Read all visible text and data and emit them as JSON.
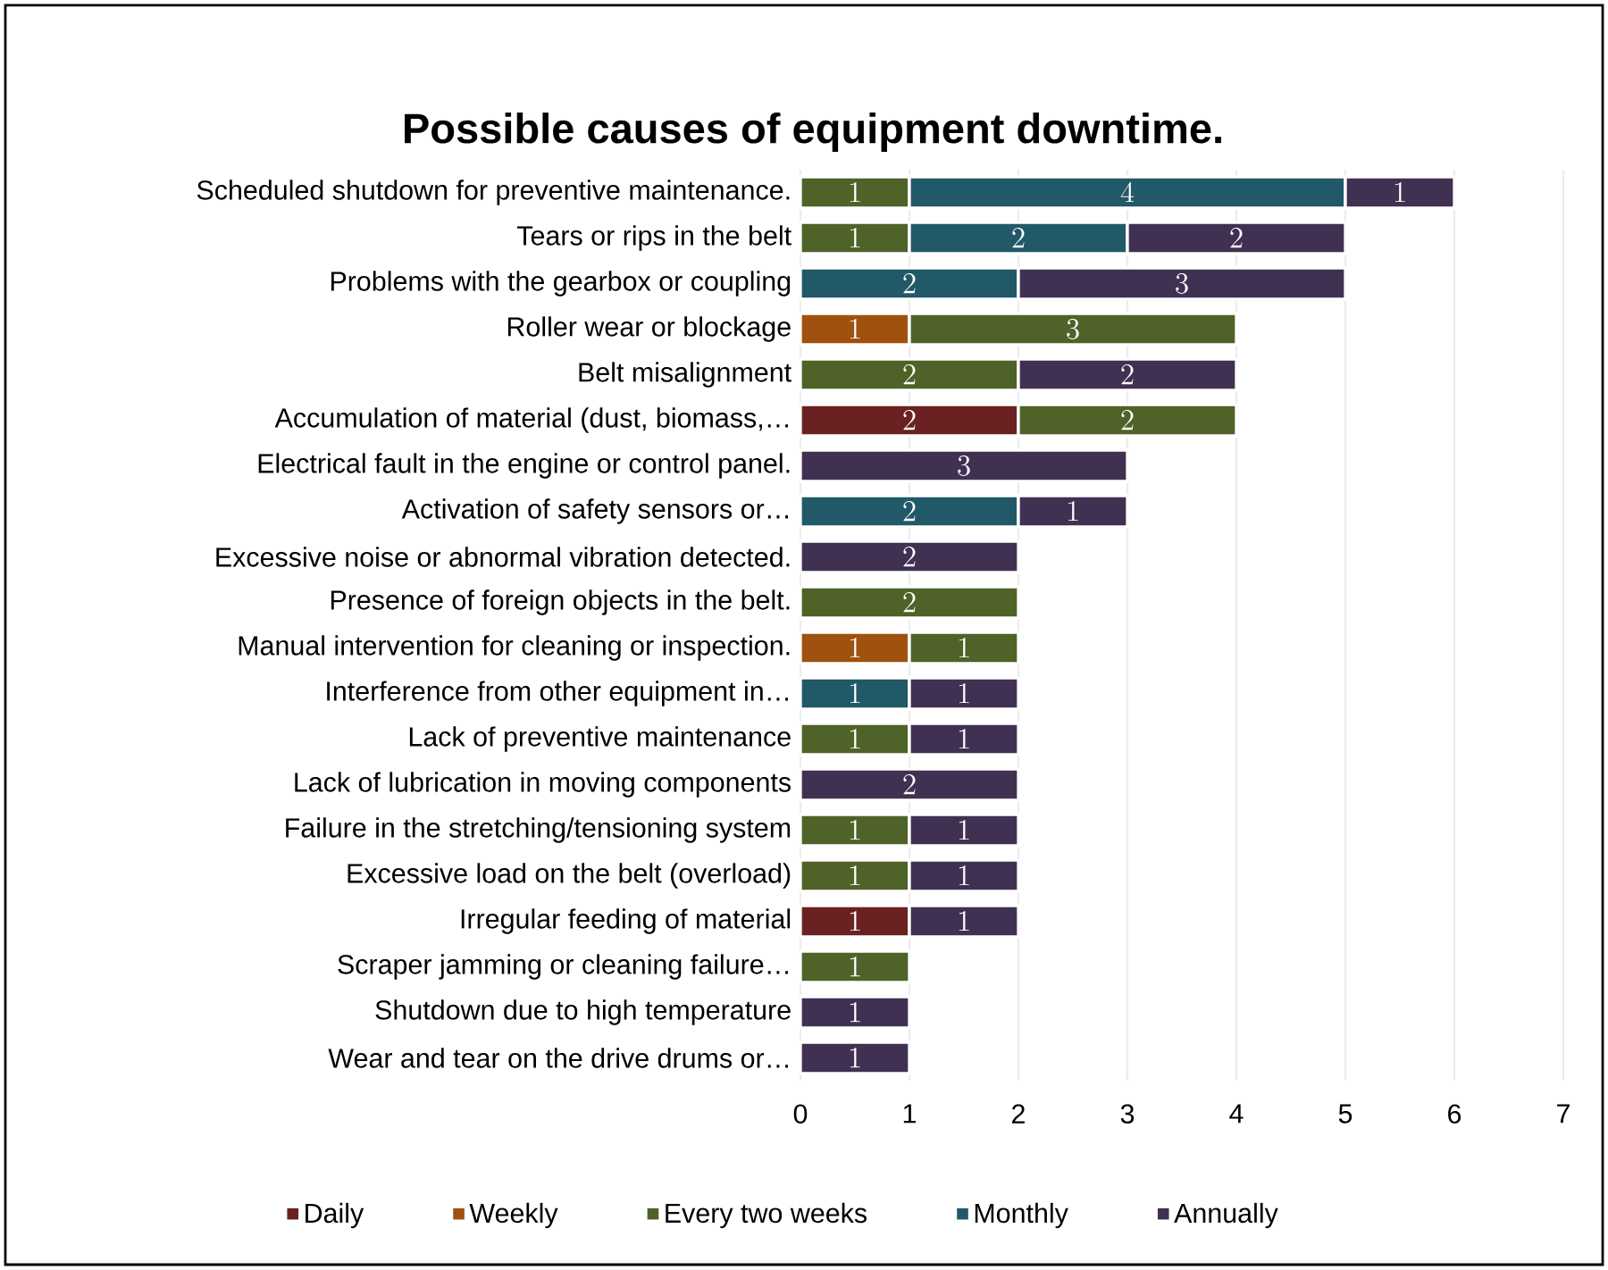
{
  "chart_data": {
    "type": "bar",
    "orientation": "horizontal",
    "stacked": true,
    "title": "Possible causes of equipment downtime.",
    "categories": [
      "Scheduled shutdown for preventive maintenance.",
      "Tears or rips in the belt",
      "Problems with the gearbox or coupling",
      "Roller wear or blockage",
      "Belt misalignment",
      "Accumulation of material (dust, biomass,…",
      "Electrical fault in the engine or control panel.",
      "Activation of safety sensors or…",
      "Excessive noise or abnormal vibration detected.",
      "Presence of foreign objects in the belt.",
      "Manual intervention for cleaning or inspection.",
      "Interference from other equipment in…",
      "Lack of preventive maintenance",
      "Lack of lubrication in moving components",
      "Failure in the stretching/tensioning system",
      "Excessive load on the belt (overload)",
      "Irregular feeding of material",
      "Scraper jamming or cleaning failure…",
      "Shutdown due to high temperature",
      "Wear and tear on the drive drums or…"
    ],
    "series": [
      {
        "name": "Daily",
        "color": "#6b2121",
        "values": [
          null,
          null,
          null,
          null,
          null,
          2,
          null,
          null,
          null,
          null,
          null,
          null,
          null,
          null,
          null,
          null,
          1,
          null,
          null,
          null
        ]
      },
      {
        "name": "Weekly",
        "color": "#a0500f",
        "values": [
          null,
          null,
          null,
          1,
          null,
          null,
          null,
          null,
          null,
          null,
          1,
          null,
          null,
          null,
          null,
          null,
          null,
          null,
          null,
          null
        ]
      },
      {
        "name": "Every two weeks",
        "color": "#4f6228",
        "values": [
          1,
          1,
          null,
          3,
          2,
          2,
          null,
          null,
          null,
          2,
          1,
          null,
          1,
          null,
          1,
          1,
          null,
          1,
          null,
          null
        ]
      },
      {
        "name": "Monthly",
        "color": "#215968",
        "values": [
          4,
          2,
          2,
          null,
          null,
          null,
          null,
          2,
          null,
          null,
          null,
          1,
          null,
          null,
          null,
          null,
          null,
          null,
          null,
          null
        ]
      },
      {
        "name": "Annually",
        "color": "#403152",
        "values": [
          1,
          2,
          3,
          null,
          2,
          null,
          3,
          1,
          2,
          null,
          null,
          1,
          1,
          2,
          1,
          1,
          1,
          null,
          1,
          1
        ]
      }
    ],
    "xlim": [
      0,
      7
    ],
    "xticks": [
      0,
      1,
      2,
      3,
      4,
      5,
      6,
      7
    ],
    "grid": "x",
    "legend": "bottom",
    "data_labels": true
  }
}
